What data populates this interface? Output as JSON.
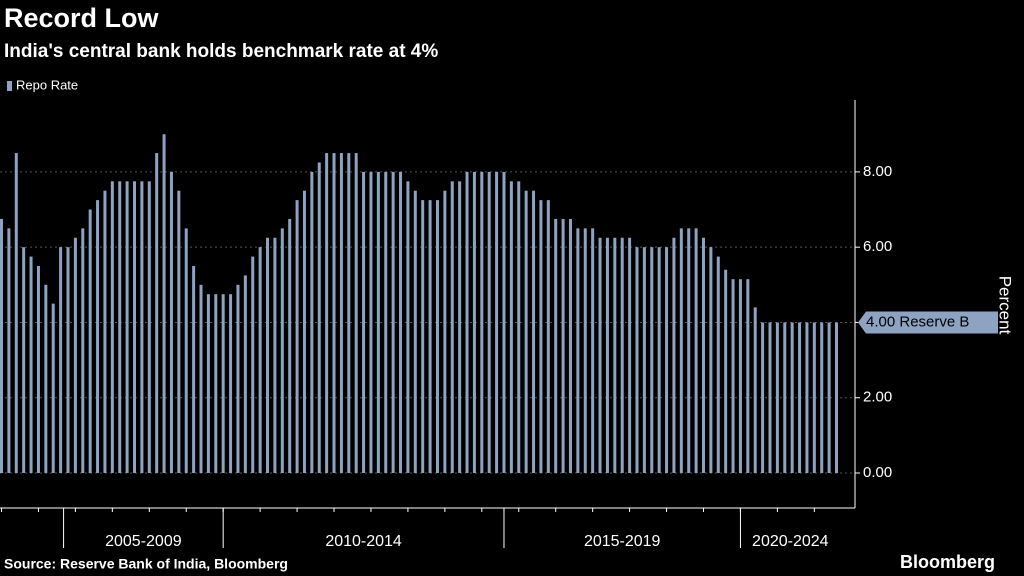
{
  "chart_data": {
    "type": "bar",
    "title": "Record Low",
    "subtitle": "India's central bank holds benchmark rate at 4%",
    "y_label": "Percent",
    "source": "Source: Reserve Bank of India, Bloomberg",
    "brand": "Bloomberg",
    "last_value_label": "4.00 Reserve B",
    "period_labels": [
      "2005-2009",
      "2010-2014",
      "2015-2019",
      "2020-2024"
    ],
    "series": [
      {
        "name": "Repo Rate",
        "color": "#8ea2c2",
        "values": [
          6.75,
          6.5,
          8.5,
          6.0,
          5.75,
          5.5,
          5.0,
          4.5,
          6.0,
          6.0,
          6.25,
          6.5,
          7.0,
          7.25,
          7.5,
          7.75,
          7.75,
          7.75,
          7.75,
          7.75,
          7.75,
          8.5,
          9.0,
          8.0,
          7.5,
          6.5,
          5.5,
          5.0,
          4.75,
          4.75,
          4.75,
          4.75,
          5.0,
          5.25,
          5.75,
          6.0,
          6.25,
          6.25,
          6.5,
          6.75,
          7.25,
          7.5,
          8.0,
          8.25,
          8.5,
          8.5,
          8.5,
          8.5,
          8.5,
          8.0,
          8.0,
          8.0,
          8.0,
          8.0,
          8.0,
          7.75,
          7.5,
          7.25,
          7.25,
          7.25,
          7.5,
          7.75,
          7.75,
          8.0,
          8.0,
          8.0,
          8.0,
          8.0,
          8.0,
          7.75,
          7.75,
          7.5,
          7.5,
          7.25,
          7.25,
          6.75,
          6.75,
          6.75,
          6.5,
          6.5,
          6.5,
          6.25,
          6.25,
          6.25,
          6.25,
          6.25,
          6.0,
          6.0,
          6.0,
          6.0,
          6.0,
          6.25,
          6.5,
          6.5,
          6.5,
          6.25,
          6.0,
          5.75,
          5.4,
          5.15,
          5.15,
          5.15,
          4.4,
          4.0,
          4.0,
          4.0,
          4.0,
          4.0,
          4.0,
          4.0,
          4.0,
          4.0,
          4.0,
          4.0
        ]
      }
    ],
    "ylim": [
      -0.93,
      9.91
    ],
    "yticks": [
      {
        "value": 0,
        "label": "0.00"
      },
      {
        "value": 2,
        "label": "2.00"
      },
      {
        "value": 4,
        "label": "4.00"
      },
      {
        "value": 6,
        "label": "6.00"
      },
      {
        "value": 8,
        "label": "8.00"
      }
    ],
    "grid": true,
    "legend": "top-left"
  }
}
